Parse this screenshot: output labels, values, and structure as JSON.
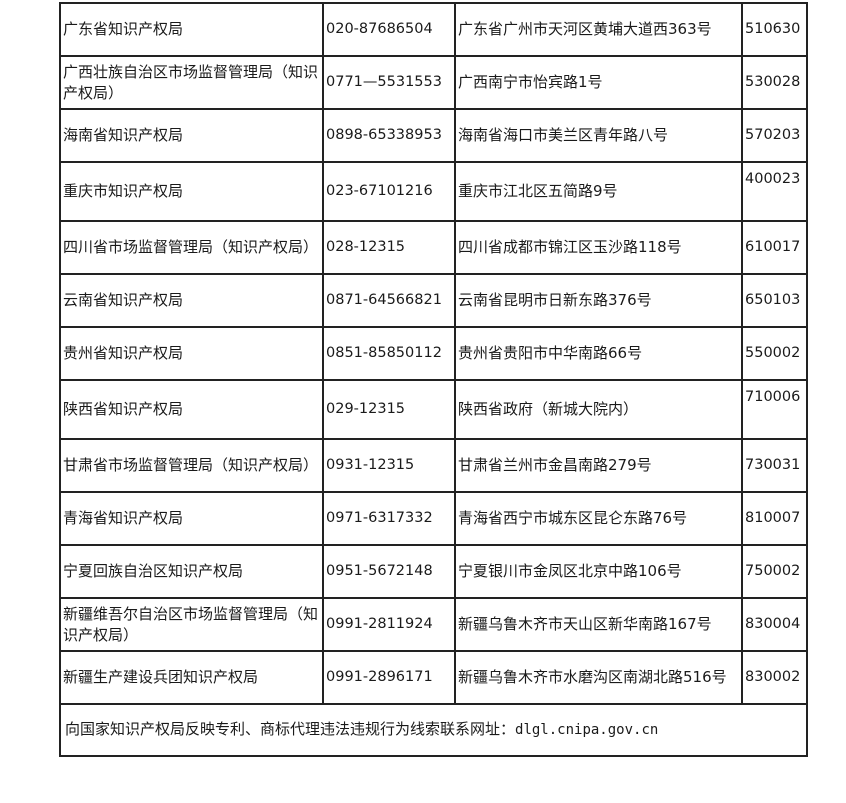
{
  "rows": [
    {
      "office": "广东省知识产权局",
      "phone": "020-87686504",
      "address": "广东省广州市天河区黄埔大道西363号",
      "postcode": "510630"
    },
    {
      "office": "广西壮族自治区市场监督管理局（知识产权局）",
      "phone": "0771—5531553",
      "address": "广西南宁市怡宾路1号",
      "postcode": "530028"
    },
    {
      "office": "海南省知识产权局",
      "phone": "0898-65338953",
      "address": "海南省海口市美兰区青年路八号",
      "postcode": "570203"
    },
    {
      "office": "重庆市知识产权局",
      "phone": "023-67101216",
      "address": "重庆市江北区五简路9号",
      "postcode": "400023"
    },
    {
      "office": "四川省市场监督管理局（知识产权局）",
      "phone": "028-12315",
      "address": "四川省成都市锦江区玉沙路118号",
      "postcode": "610017"
    },
    {
      "office": "云南省知识产权局",
      "phone": "0871-64566821",
      "address": "云南省昆明市日新东路376号",
      "postcode": "650103"
    },
    {
      "office": "贵州省知识产权局",
      "phone": "0851-85850112",
      "address": "贵州省贵阳市中华南路66号",
      "postcode": "550002"
    },
    {
      "office": "陕西省知识产权局",
      "phone": "029-12315",
      "address": "陕西省政府（新城大院内）",
      "postcode": "710006"
    },
    {
      "office": "甘肃省市场监督管理局（知识产权局）",
      "phone": "0931-12315",
      "address": "甘肃省兰州市金昌南路279号",
      "postcode": "730031"
    },
    {
      "office": "青海省知识产权局",
      "phone": "0971-6317332",
      "address": "青海省西宁市城东区昆仑东路76号",
      "postcode": "810007"
    },
    {
      "office": "宁夏回族自治区知识产权局",
      "phone": "0951-5672148",
      "address": "宁夏银川市金凤区北京中路106号",
      "postcode": "750002"
    },
    {
      "office": "新疆维吾尔自治区市场监督管理局（知识产权局）",
      "phone": "0991-2811924",
      "address": "新疆乌鲁木齐市天山区新华南路167号",
      "postcode": "830004"
    },
    {
      "office": "新疆生产建设兵团知识产权局",
      "phone": "0991-2896171",
      "address": "新疆乌鲁木齐市水磨沟区南湖北路516号",
      "postcode": "830002"
    }
  ],
  "footer": {
    "text": "向国家知识产权局反映专利、商标代理违法违规行为线索联系网址：",
    "url": "dlgl.cnipa.gov.cn"
  }
}
